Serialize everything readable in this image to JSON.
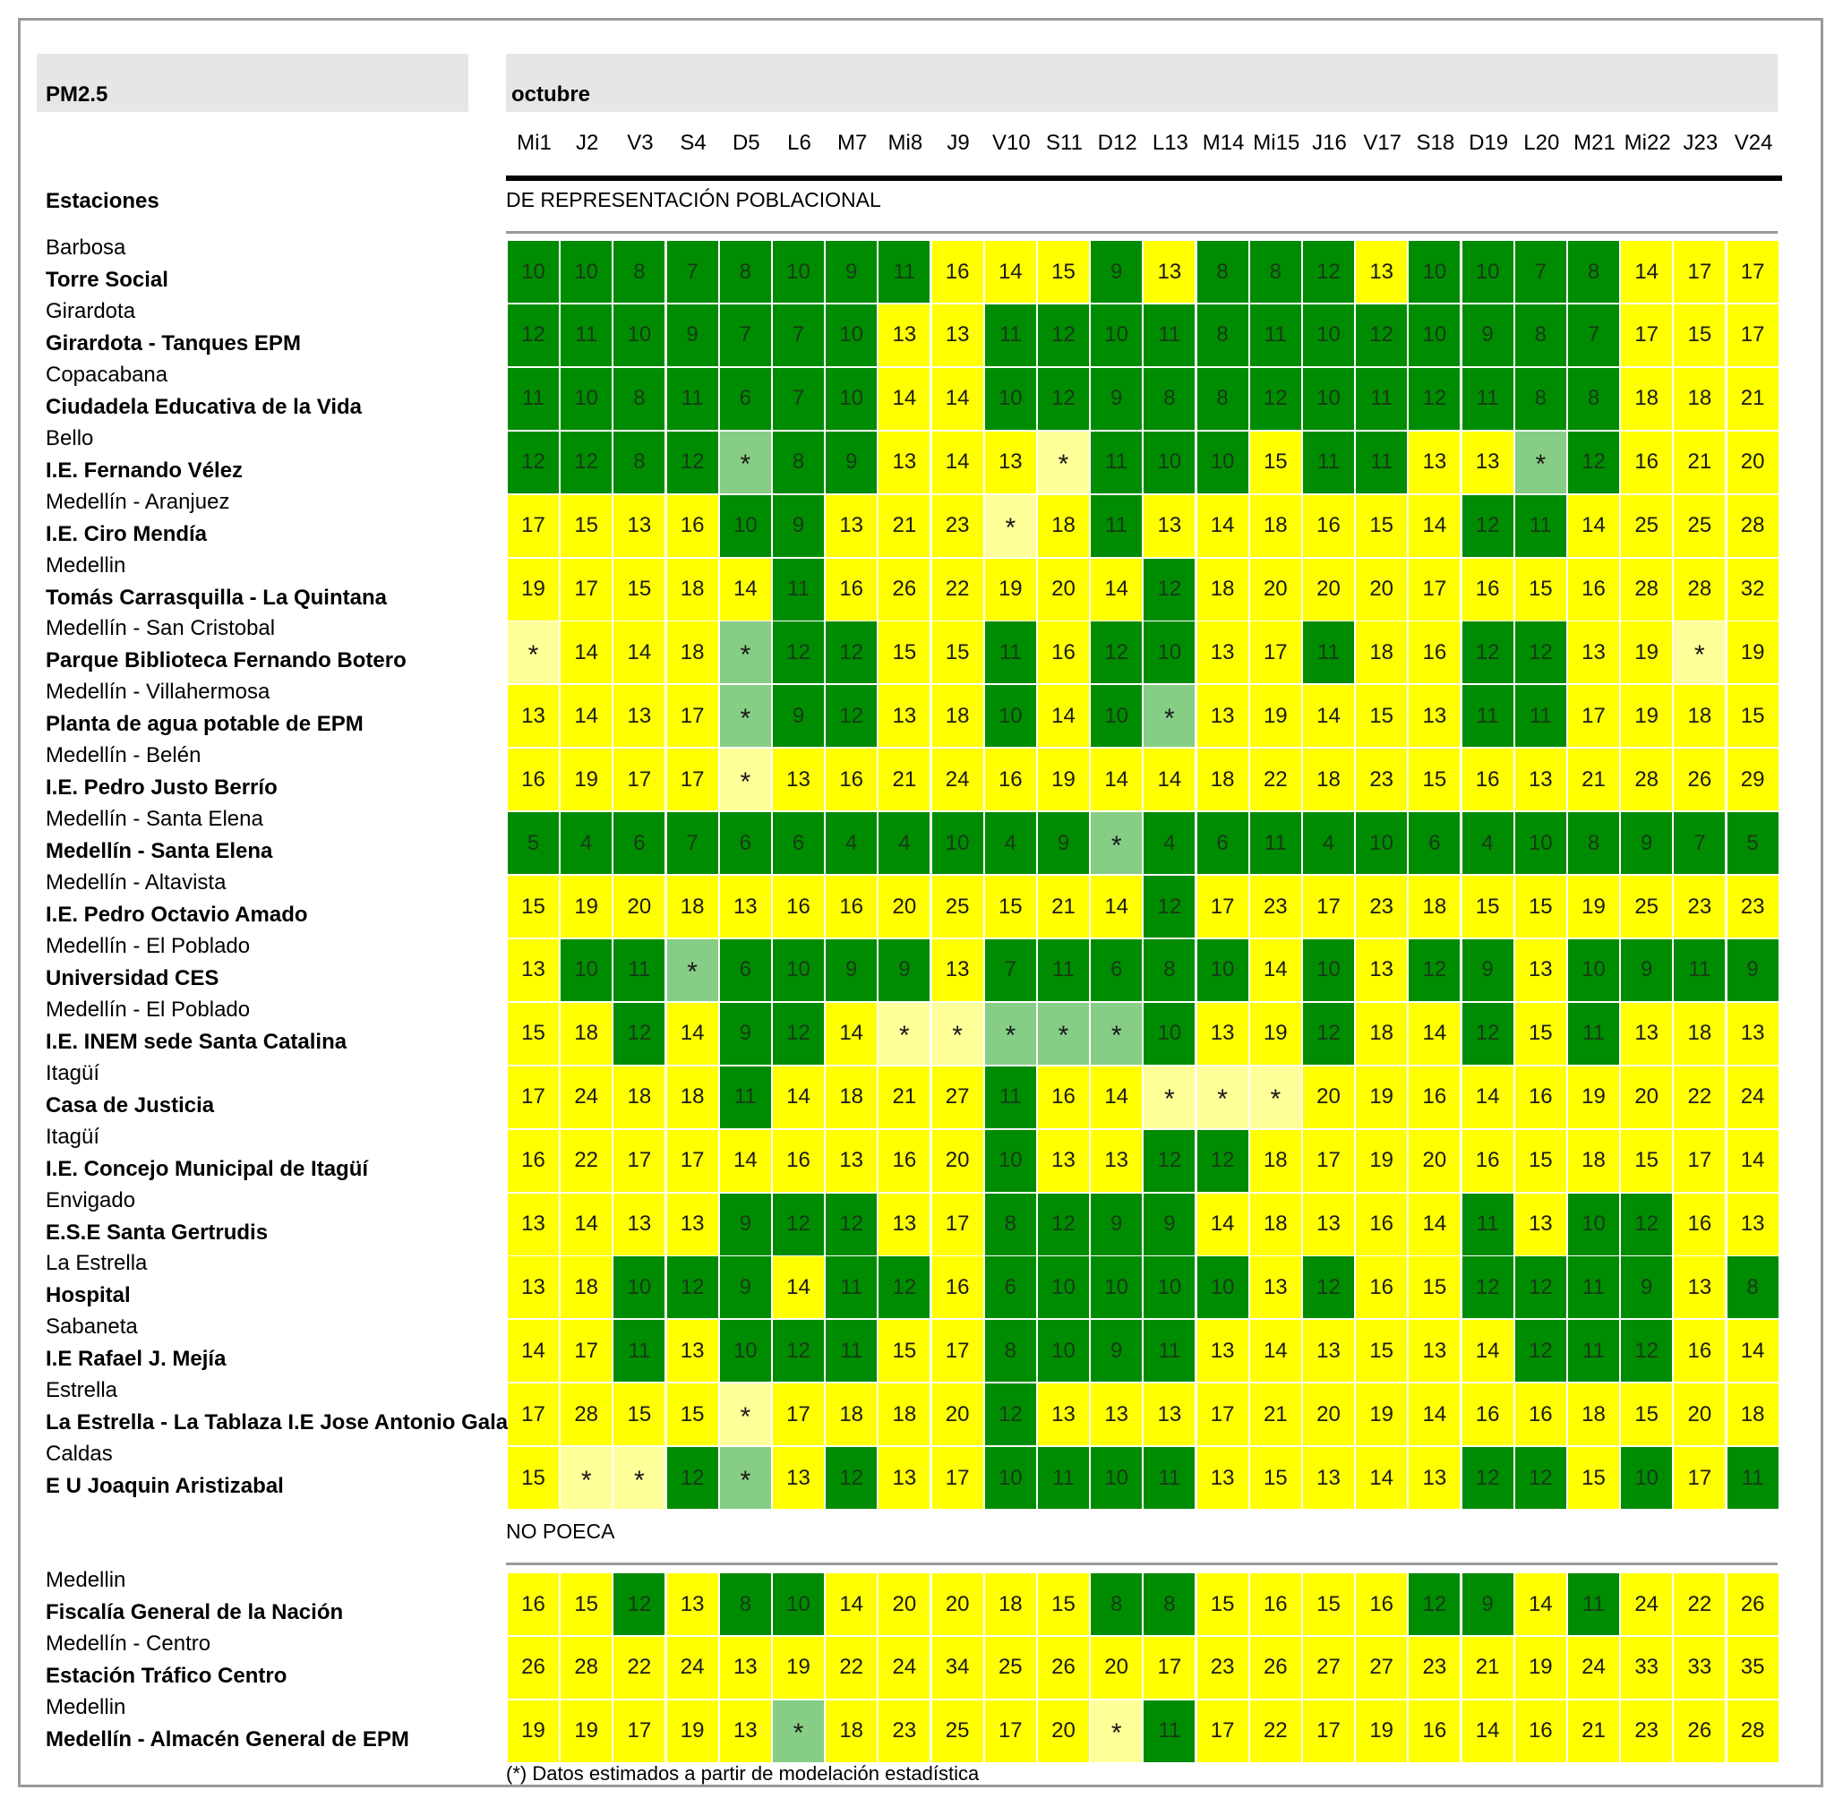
{
  "header": {
    "pollutant": "PM2.5",
    "month": "octubre",
    "stations_label": "Estaciones",
    "section_poblacional": "DE REPRESENTACIÓN POBLACIONAL",
    "section_no_poeca": "NO POECA",
    "footnote": "(*) Datos estimados a partir de modelación estadística"
  },
  "days": [
    "Mi1",
    "J2",
    "V3",
    "S4",
    "D5",
    "L6",
    "M7",
    "Mi8",
    "J9",
    "V10",
    "S11",
    "D12",
    "L13",
    "M14",
    "Mi15",
    "J16",
    "V17",
    "S18",
    "D19",
    "L20",
    "M21",
    "Mi22",
    "J23",
    "V24"
  ],
  "legend_colors": {
    "g": "#008c00",
    "y": "#ffff00",
    "lg": "#86cd86",
    "ly": "#ffff99"
  },
  "poblacional": [
    {
      "city": "Barbosa",
      "station": "Torre Social",
      "values": [
        "10",
        "10",
        "8",
        "7",
        "8",
        "10",
        "9",
        "11",
        "16",
        "14",
        "15",
        "9",
        "13",
        "8",
        "8",
        "12",
        "13",
        "10",
        "10",
        "7",
        "8",
        "14",
        "17",
        "17"
      ],
      "colors": [
        "g",
        "g",
        "g",
        "g",
        "g",
        "g",
        "g",
        "g",
        "y",
        "y",
        "y",
        "g",
        "y",
        "g",
        "g",
        "g",
        "y",
        "g",
        "g",
        "g",
        "g",
        "y",
        "y",
        "y"
      ]
    },
    {
      "city": "Girardota",
      "station": "Girardota - Tanques EPM",
      "values": [
        "12",
        "11",
        "10",
        "9",
        "7",
        "7",
        "10",
        "13",
        "13",
        "11",
        "12",
        "10",
        "11",
        "8",
        "11",
        "10",
        "12",
        "10",
        "9",
        "8",
        "7",
        "17",
        "15",
        "17"
      ],
      "colors": [
        "g",
        "g",
        "g",
        "g",
        "g",
        "g",
        "g",
        "y",
        "y",
        "g",
        "g",
        "g",
        "g",
        "g",
        "g",
        "g",
        "g",
        "g",
        "g",
        "g",
        "g",
        "y",
        "y",
        "y"
      ]
    },
    {
      "city": "Copacabana",
      "station": "Ciudadela Educativa de la Vida",
      "values": [
        "11",
        "10",
        "8",
        "11",
        "6",
        "7",
        "10",
        "14",
        "14",
        "10",
        "12",
        "9",
        "8",
        "8",
        "12",
        "10",
        "11",
        "12",
        "11",
        "8",
        "8",
        "18",
        "18",
        "21"
      ],
      "colors": [
        "g",
        "g",
        "g",
        "g",
        "g",
        "g",
        "g",
        "y",
        "y",
        "g",
        "g",
        "g",
        "g",
        "g",
        "g",
        "g",
        "g",
        "g",
        "g",
        "g",
        "g",
        "y",
        "y",
        "y"
      ]
    },
    {
      "city": "Bello",
      "station": "I.E. Fernando Vélez",
      "values": [
        "12",
        "12",
        "8",
        "12",
        "*",
        "8",
        "9",
        "13",
        "14",
        "13",
        "*",
        "11",
        "10",
        "10",
        "15",
        "11",
        "11",
        "13",
        "13",
        "*",
        "12",
        "16",
        "21",
        "20"
      ],
      "colors": [
        "g",
        "g",
        "g",
        "g",
        "lg",
        "g",
        "g",
        "y",
        "y",
        "y",
        "ly",
        "g",
        "g",
        "g",
        "y",
        "g",
        "g",
        "y",
        "y",
        "lg",
        "g",
        "y",
        "y",
        "y"
      ]
    },
    {
      "city": "Medellín - Aranjuez",
      "station": "I.E. Ciro Mendía",
      "values": [
        "17",
        "15",
        "13",
        "16",
        "10",
        "9",
        "13",
        "21",
        "23",
        "*",
        "18",
        "11",
        "13",
        "14",
        "18",
        "16",
        "15",
        "14",
        "12",
        "11",
        "14",
        "25",
        "25",
        "28"
      ],
      "colors": [
        "y",
        "y",
        "y",
        "y",
        "g",
        "g",
        "y",
        "y",
        "y",
        "ly",
        "y",
        "g",
        "y",
        "y",
        "y",
        "y",
        "y",
        "y",
        "g",
        "g",
        "y",
        "y",
        "y",
        "y"
      ]
    },
    {
      "city": "Medellin",
      "station": "Tomás Carrasquilla - La Quintana",
      "values": [
        "19",
        "17",
        "15",
        "18",
        "14",
        "11",
        "16",
        "26",
        "22",
        "19",
        "20",
        "14",
        "12",
        "18",
        "20",
        "20",
        "20",
        "17",
        "16",
        "15",
        "16",
        "28",
        "28",
        "32"
      ],
      "colors": [
        "y",
        "y",
        "y",
        "y",
        "y",
        "g",
        "y",
        "y",
        "y",
        "y",
        "y",
        "y",
        "g",
        "y",
        "y",
        "y",
        "y",
        "y",
        "y",
        "y",
        "y",
        "y",
        "y",
        "y"
      ]
    },
    {
      "city": "Medellín - San Cristobal",
      "station": "Parque Biblioteca Fernando Botero",
      "values": [
        "*",
        "14",
        "14",
        "18",
        "*",
        "12",
        "12",
        "15",
        "15",
        "11",
        "16",
        "12",
        "10",
        "13",
        "17",
        "11",
        "18",
        "16",
        "12",
        "12",
        "13",
        "19",
        "*",
        "19"
      ],
      "colors": [
        "ly",
        "y",
        "y",
        "y",
        "lg",
        "g",
        "g",
        "y",
        "y",
        "g",
        "y",
        "g",
        "g",
        "y",
        "y",
        "g",
        "y",
        "y",
        "g",
        "g",
        "y",
        "y",
        "ly",
        "y"
      ]
    },
    {
      "city": "Medellín - Villahermosa",
      "station": "Planta de agua potable de EPM",
      "values": [
        "13",
        "14",
        "13",
        "17",
        "*",
        "9",
        "12",
        "13",
        "18",
        "10",
        "14",
        "10",
        "*",
        "13",
        "19",
        "14",
        "15",
        "13",
        "11",
        "11",
        "17",
        "19",
        "18",
        "15"
      ],
      "colors": [
        "y",
        "y",
        "y",
        "y",
        "lg",
        "g",
        "g",
        "y",
        "y",
        "g",
        "y",
        "g",
        "lg",
        "y",
        "y",
        "y",
        "y",
        "y",
        "g",
        "g",
        "y",
        "y",
        "y",
        "y"
      ]
    },
    {
      "city": "Medellín - Belén",
      "station": "I.E. Pedro Justo Berrío",
      "values": [
        "16",
        "19",
        "17",
        "17",
        "*",
        "13",
        "16",
        "21",
        "24",
        "16",
        "19",
        "14",
        "14",
        "18",
        "22",
        "18",
        "23",
        "15",
        "16",
        "13",
        "21",
        "28",
        "26",
        "29"
      ],
      "colors": [
        "y",
        "y",
        "y",
        "y",
        "ly",
        "y",
        "y",
        "y",
        "y",
        "y",
        "y",
        "y",
        "y",
        "y",
        "y",
        "y",
        "y",
        "y",
        "y",
        "y",
        "y",
        "y",
        "y",
        "y"
      ]
    },
    {
      "city": "Medellín - Santa Elena",
      "station": "Medellín - Santa Elena",
      "values": [
        "5",
        "4",
        "6",
        "7",
        "6",
        "6",
        "4",
        "4",
        "10",
        "4",
        "9",
        "*",
        "4",
        "6",
        "11",
        "4",
        "10",
        "6",
        "4",
        "10",
        "8",
        "9",
        "7",
        "5"
      ],
      "colors": [
        "g",
        "g",
        "g",
        "g",
        "g",
        "g",
        "g",
        "g",
        "g",
        "g",
        "g",
        "lg",
        "g",
        "g",
        "g",
        "g",
        "g",
        "g",
        "g",
        "g",
        "g",
        "g",
        "g",
        "g"
      ]
    },
    {
      "city": "Medellín - Altavista",
      "station": "I.E. Pedro Octavio Amado",
      "values": [
        "15",
        "19",
        "20",
        "18",
        "13",
        "16",
        "16",
        "20",
        "25",
        "15",
        "21",
        "14",
        "12",
        "17",
        "23",
        "17",
        "23",
        "18",
        "15",
        "15",
        "19",
        "25",
        "23",
        "23"
      ],
      "colors": [
        "y",
        "y",
        "y",
        "y",
        "y",
        "y",
        "y",
        "y",
        "y",
        "y",
        "y",
        "y",
        "g",
        "y",
        "y",
        "y",
        "y",
        "y",
        "y",
        "y",
        "y",
        "y",
        "y",
        "y"
      ]
    },
    {
      "city": "Medellín - El Poblado",
      "station": "Universidad CES",
      "values": [
        "13",
        "10",
        "11",
        "*",
        "6",
        "10",
        "9",
        "9",
        "13",
        "7",
        "11",
        "6",
        "8",
        "10",
        "14",
        "10",
        "13",
        "12",
        "9",
        "13",
        "10",
        "9",
        "11",
        "9"
      ],
      "colors": [
        "y",
        "g",
        "g",
        "lg",
        "g",
        "g",
        "g",
        "g",
        "y",
        "g",
        "g",
        "g",
        "g",
        "g",
        "y",
        "g",
        "y",
        "g",
        "g",
        "y",
        "g",
        "g",
        "g",
        "g"
      ]
    },
    {
      "city": "Medellín - El Poblado",
      "station": "I.E. INEM sede Santa Catalina",
      "values": [
        "15",
        "18",
        "12",
        "14",
        "9",
        "12",
        "14",
        "*",
        "*",
        "*",
        "*",
        "*",
        "10",
        "13",
        "19",
        "12",
        "18",
        "14",
        "12",
        "15",
        "11",
        "13",
        "18",
        "13"
      ],
      "colors": [
        "y",
        "y",
        "g",
        "y",
        "g",
        "g",
        "y",
        "ly",
        "ly",
        "lg",
        "lg",
        "lg",
        "g",
        "y",
        "y",
        "g",
        "y",
        "y",
        "g",
        "y",
        "g",
        "y",
        "y",
        "y"
      ]
    },
    {
      "city": "Itagüí",
      "station": "Casa de Justicia",
      "values": [
        "17",
        "24",
        "18",
        "18",
        "11",
        "14",
        "18",
        "21",
        "27",
        "11",
        "16",
        "14",
        "*",
        "*",
        "*",
        "20",
        "19",
        "16",
        "14",
        "16",
        "19",
        "20",
        "22",
        "24"
      ],
      "colors": [
        "y",
        "y",
        "y",
        "y",
        "g",
        "y",
        "y",
        "y",
        "y",
        "g",
        "y",
        "y",
        "ly",
        "ly",
        "ly",
        "y",
        "y",
        "y",
        "y",
        "y",
        "y",
        "y",
        "y",
        "y"
      ]
    },
    {
      "city": "Itagüí",
      "station": "I.E. Concejo Municipal de Itagüí",
      "values": [
        "16",
        "22",
        "17",
        "17",
        "14",
        "16",
        "13",
        "16",
        "20",
        "10",
        "13",
        "13",
        "12",
        "12",
        "18",
        "17",
        "19",
        "20",
        "16",
        "15",
        "18",
        "15",
        "17",
        "14"
      ],
      "colors": [
        "y",
        "y",
        "y",
        "y",
        "y",
        "y",
        "y",
        "y",
        "y",
        "g",
        "y",
        "y",
        "g",
        "g",
        "y",
        "y",
        "y",
        "y",
        "y",
        "y",
        "y",
        "y",
        "y",
        "y"
      ]
    },
    {
      "city": "Envigado",
      "station": "E.S.E Santa Gertrudis",
      "values": [
        "13",
        "14",
        "13",
        "13",
        "9",
        "12",
        "12",
        "13",
        "17",
        "8",
        "12",
        "9",
        "9",
        "14",
        "18",
        "13",
        "16",
        "14",
        "11",
        "13",
        "10",
        "12",
        "16",
        "13"
      ],
      "colors": [
        "y",
        "y",
        "y",
        "y",
        "g",
        "g",
        "g",
        "y",
        "y",
        "g",
        "g",
        "g",
        "g",
        "y",
        "y",
        "y",
        "y",
        "y",
        "g",
        "y",
        "g",
        "g",
        "y",
        "y"
      ]
    },
    {
      "city": "La Estrella",
      "station": "Hospital",
      "values": [
        "13",
        "18",
        "10",
        "12",
        "9",
        "14",
        "11",
        "12",
        "16",
        "6",
        "10",
        "10",
        "10",
        "10",
        "13",
        "12",
        "16",
        "15",
        "12",
        "12",
        "11",
        "9",
        "13",
        "8"
      ],
      "colors": [
        "y",
        "y",
        "g",
        "g",
        "g",
        "y",
        "g",
        "g",
        "y",
        "g",
        "g",
        "g",
        "g",
        "g",
        "y",
        "g",
        "y",
        "y",
        "g",
        "g",
        "g",
        "g",
        "y",
        "g"
      ]
    },
    {
      "city": "Sabaneta",
      "station": "I.E Rafael J. Mejía",
      "values": [
        "14",
        "17",
        "11",
        "13",
        "10",
        "12",
        "11",
        "15",
        "17",
        "8",
        "10",
        "9",
        "11",
        "13",
        "14",
        "13",
        "15",
        "13",
        "14",
        "12",
        "11",
        "12",
        "16",
        "14"
      ],
      "colors": [
        "y",
        "y",
        "g",
        "y",
        "g",
        "g",
        "g",
        "y",
        "y",
        "g",
        "g",
        "g",
        "g",
        "y",
        "y",
        "y",
        "y",
        "y",
        "y",
        "g",
        "g",
        "g",
        "y",
        "y"
      ]
    },
    {
      "city": "Estrella",
      "station": "La Estrella - La Tablaza I.E Jose Antonio Galan",
      "values": [
        "17",
        "28",
        "15",
        "15",
        "*",
        "17",
        "18",
        "18",
        "20",
        "12",
        "13",
        "13",
        "13",
        "17",
        "21",
        "20",
        "19",
        "14",
        "16",
        "16",
        "18",
        "15",
        "20",
        "18"
      ],
      "colors": [
        "y",
        "y",
        "y",
        "y",
        "ly",
        "y",
        "y",
        "y",
        "y",
        "g",
        "y",
        "y",
        "y",
        "y",
        "y",
        "y",
        "y",
        "y",
        "y",
        "y",
        "y",
        "y",
        "y",
        "y"
      ]
    },
    {
      "city": "Caldas",
      "station": "E U Joaquin Aristizabal",
      "values": [
        "15",
        "*",
        "*",
        "12",
        "*",
        "13",
        "12",
        "13",
        "17",
        "10",
        "11",
        "10",
        "11",
        "13",
        "15",
        "13",
        "14",
        "13",
        "12",
        "12",
        "15",
        "10",
        "17",
        "11"
      ],
      "colors": [
        "y",
        "ly",
        "ly",
        "g",
        "lg",
        "y",
        "g",
        "y",
        "y",
        "g",
        "g",
        "g",
        "g",
        "y",
        "y",
        "y",
        "y",
        "y",
        "g",
        "g",
        "y",
        "g",
        "y",
        "g"
      ]
    }
  ],
  "no_poeca": [
    {
      "city": "Medellin",
      "station": "Fiscalía General de la Nación",
      "values": [
        "16",
        "15",
        "12",
        "13",
        "8",
        "10",
        "14",
        "20",
        "20",
        "18",
        "15",
        "8",
        "8",
        "15",
        "16",
        "15",
        "16",
        "12",
        "9",
        "14",
        "11",
        "24",
        "22",
        "26"
      ],
      "colors": [
        "y",
        "y",
        "g",
        "y",
        "g",
        "g",
        "y",
        "y",
        "y",
        "y",
        "y",
        "g",
        "g",
        "y",
        "y",
        "y",
        "y",
        "g",
        "g",
        "y",
        "g",
        "y",
        "y",
        "y"
      ]
    },
    {
      "city": "Medellín - Centro",
      "station": "Estación Tráfico Centro",
      "values": [
        "26",
        "28",
        "22",
        "24",
        "13",
        "19",
        "22",
        "24",
        "34",
        "25",
        "26",
        "20",
        "17",
        "23",
        "26",
        "27",
        "27",
        "23",
        "21",
        "19",
        "24",
        "33",
        "33",
        "35"
      ],
      "colors": [
        "y",
        "y",
        "y",
        "y",
        "y",
        "y",
        "y",
        "y",
        "y",
        "y",
        "y",
        "y",
        "y",
        "y",
        "y",
        "y",
        "y",
        "y",
        "y",
        "y",
        "y",
        "y",
        "y",
        "y"
      ]
    },
    {
      "city": "Medellin",
      "station": "Medellín - Almacén General de EPM",
      "values": [
        "19",
        "19",
        "17",
        "19",
        "13",
        "*",
        "18",
        "23",
        "25",
        "17",
        "20",
        "*",
        "11",
        "17",
        "22",
        "17",
        "19",
        "16",
        "14",
        "16",
        "21",
        "23",
        "26",
        "28"
      ],
      "colors": [
        "y",
        "y",
        "y",
        "y",
        "y",
        "lg",
        "y",
        "y",
        "y",
        "y",
        "y",
        "ly",
        "g",
        "y",
        "y",
        "y",
        "y",
        "y",
        "y",
        "y",
        "y",
        "y",
        "y",
        "y"
      ]
    }
  ]
}
